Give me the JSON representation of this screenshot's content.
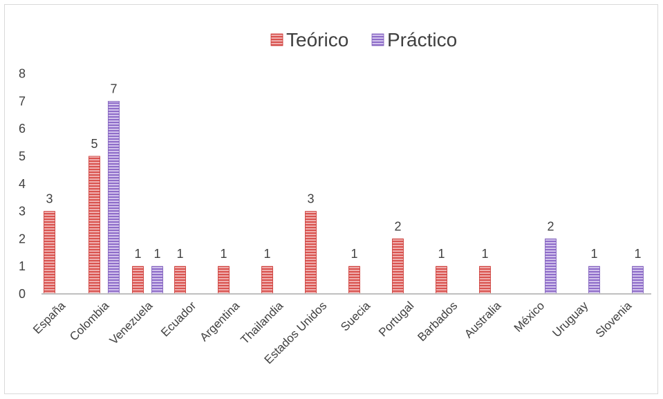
{
  "chart_data": {
    "type": "bar",
    "title": "",
    "xlabel": "",
    "ylabel": "",
    "ylim": [
      0,
      8
    ],
    "yticks": [
      0,
      1,
      2,
      3,
      4,
      5,
      6,
      7,
      8
    ],
    "legend_position": "top",
    "grid": false,
    "categories": [
      "España",
      "Colombia",
      "Venezuela",
      "Ecuador",
      "Argentina",
      "Thailandia",
      "Estados Unidos",
      "Suecia",
      "Portugal",
      "Barbados",
      "Australia",
      "México",
      "Uruguay",
      "Slovenia"
    ],
    "series": [
      {
        "name": "Teórico",
        "color": "#e06666",
        "values": [
          3,
          5,
          1,
          1,
          1,
          1,
          3,
          1,
          2,
          1,
          1,
          null,
          null,
          null
        ]
      },
      {
        "name": "Práctico",
        "color": "#9b7fd4",
        "values": [
          null,
          7,
          1,
          null,
          null,
          null,
          null,
          null,
          null,
          null,
          null,
          2,
          1,
          1
        ]
      }
    ]
  }
}
